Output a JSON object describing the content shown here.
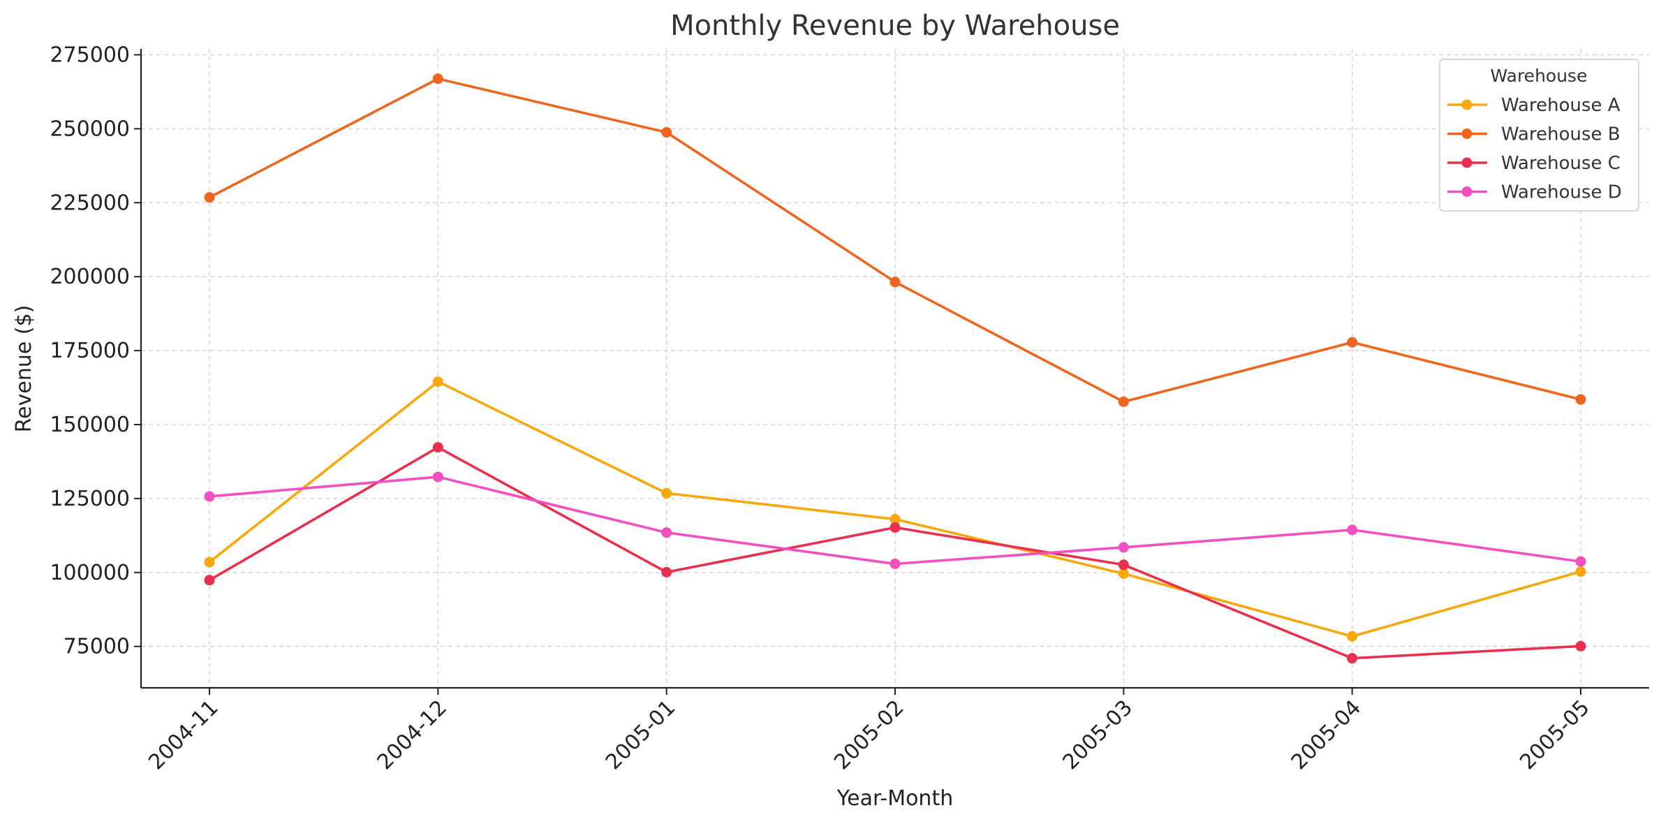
{
  "chart_data": {
    "type": "line",
    "title": "Monthly Revenue by Warehouse",
    "xlabel": "Year-Month",
    "ylabel": "Revenue ($)",
    "categories": [
      "2004-11",
      "2004-12",
      "2005-01",
      "2005-02",
      "2005-03",
      "2005-04",
      "2005-05"
    ],
    "ylim": [
      61000,
      277000
    ],
    "yticks": [
      75000,
      100000,
      125000,
      150000,
      175000,
      200000,
      225000,
      250000,
      275000
    ],
    "ytick_labels": [
      "75000",
      "100000",
      "125000",
      "150000",
      "175000",
      "200000",
      "225000",
      "250000",
      "275000"
    ],
    "grid": true,
    "legend_title": "Warehouse",
    "legend_position": "top-right",
    "series": [
      {
        "name": "Warehouse A",
        "color": "#f7a80d",
        "values": [
          103500,
          164500,
          126800,
          118000,
          99600,
          78400,
          100300
        ]
      },
      {
        "name": "Warehouse B",
        "color": "#ee6520",
        "values": [
          226800,
          266900,
          248800,
          198200,
          157700,
          177800,
          158500
        ]
      },
      {
        "name": "Warehouse C",
        "color": "#e8304e",
        "values": [
          97400,
          142300,
          100100,
          115200,
          102600,
          71000,
          75100
        ]
      },
      {
        "name": "Warehouse D",
        "color": "#f24fc0",
        "values": [
          125700,
          132300,
          113500,
          102900,
          108500,
          114400,
          103700
        ]
      }
    ]
  }
}
